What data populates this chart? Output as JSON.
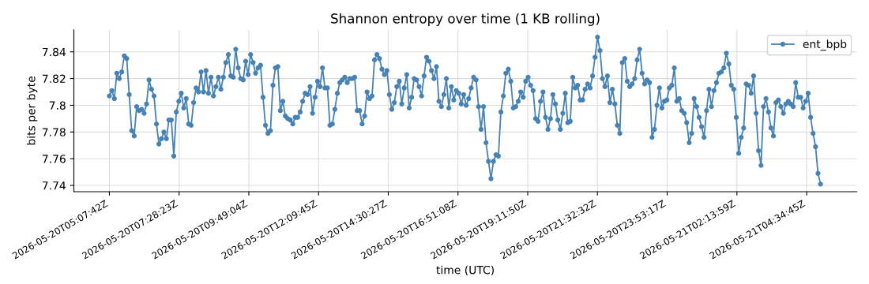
{
  "chart_data": {
    "type": "line",
    "title": "Shannon entropy over time (1 KB rolling)",
    "xlabel": "time (UTC)",
    "ylabel": "bits per byte",
    "xlim": [
      "2026-05-20T03:56",
      "2026-05-21T06:16"
    ],
    "ylim": [
      7.7353,
      7.8565
    ],
    "xticks": [
      {
        "value": "2026-05-20T05:07:42",
        "label": "2026-05-20T05:07:42Z"
      },
      {
        "value": "2026-05-20T07:28:23",
        "label": "2026-05-20T07:28:23Z"
      },
      {
        "value": "2026-05-20T09:49:04",
        "label": "2026-05-20T09:49:04Z"
      },
      {
        "value": "2026-05-20T12:09:45",
        "label": "2026-05-20T12:09:45Z"
      },
      {
        "value": "2026-05-20T14:30:27",
        "label": "2026-05-20T14:30:27Z"
      },
      {
        "value": "2026-05-20T16:51:08",
        "label": "2026-05-20T16:51:08Z"
      },
      {
        "value": "2026-05-20T19:11:50",
        "label": "2026-05-20T19:11:50Z"
      },
      {
        "value": "2026-05-20T21:32:32",
        "label": "2026-05-20T21:32:32Z"
      },
      {
        "value": "2026-05-20T23:53:17",
        "label": "2026-05-20T23:53:17Z"
      },
      {
        "value": "2026-05-21T02:13:59",
        "label": "2026-05-21T02:13:59Z"
      },
      {
        "value": "2026-05-21T04:34:45",
        "label": "2026-05-21T04:34:45Z"
      }
    ],
    "yticks": [
      7.74,
      7.76,
      7.78,
      7.8,
      7.82,
      7.84
    ],
    "grid": true,
    "legend": "top right",
    "marker": "circle",
    "line_style": "solid",
    "series": [
      {
        "name": "ent_bpb",
        "color": "#4682b4",
        "x": [
          "2026-05-20T05:07:42",
          "2026-05-20T05:12:42",
          "2026-05-20T05:17:42",
          "2026-05-20T05:22:42",
          "2026-05-20T05:27:42",
          "2026-05-20T05:32:42",
          "2026-05-20T05:37:42",
          "2026-05-20T05:42:42",
          "2026-05-20T05:47:42",
          "2026-05-20T05:52:42",
          "2026-05-20T05:57:42",
          "2026-05-20T06:02:42",
          "2026-05-20T06:07:42",
          "2026-05-20T06:12:42",
          "2026-05-20T06:17:42",
          "2026-05-20T06:22:42",
          "2026-05-20T06:27:42",
          "2026-05-20T06:32:42",
          "2026-05-20T06:37:42",
          "2026-05-20T06:42:42",
          "2026-05-20T06:47:42",
          "2026-05-20T06:52:42",
          "2026-05-20T06:57:42",
          "2026-05-20T07:02:42",
          "2026-05-20T07:07:42",
          "2026-05-20T07:12:42",
          "2026-05-20T07:17:42",
          "2026-05-20T07:22:42",
          "2026-05-20T07:27:42",
          "2026-05-20T07:32:42",
          "2026-05-20T07:37:42",
          "2026-05-20T07:42:42",
          "2026-05-20T07:47:42",
          "2026-05-20T07:52:42",
          "2026-05-20T07:57:42",
          "2026-05-20T08:02:42",
          "2026-05-20T08:07:42",
          "2026-05-20T08:12:42",
          "2026-05-20T08:17:42",
          "2026-05-20T08:22:42",
          "2026-05-20T08:27:42",
          "2026-05-20T08:32:42",
          "2026-05-20T08:37:42",
          "2026-05-20T08:42:42",
          "2026-05-20T08:47:42",
          "2026-05-20T08:52:42",
          "2026-05-20T08:57:42",
          "2026-05-20T09:02:42",
          "2026-05-20T09:07:42",
          "2026-05-20T09:12:42",
          "2026-05-20T09:17:42",
          "2026-05-20T09:22:42",
          "2026-05-20T09:27:42",
          "2026-05-20T09:32:42",
          "2026-05-20T09:37:42",
          "2026-05-20T09:42:42",
          "2026-05-20T09:47:42",
          "2026-05-20T09:52:42",
          "2026-05-20T09:57:42",
          "2026-05-20T10:02:42",
          "2026-05-20T10:07:42",
          "2026-05-20T10:12:42",
          "2026-05-20T10:17:42",
          "2026-05-20T10:22:42",
          "2026-05-20T10:27:42",
          "2026-05-20T10:32:42",
          "2026-05-20T10:37:42",
          "2026-05-20T10:42:42",
          "2026-05-20T10:47:42",
          "2026-05-20T10:52:42",
          "2026-05-20T10:57:42",
          "2026-05-20T11:02:42",
          "2026-05-20T11:07:42",
          "2026-05-20T11:12:42",
          "2026-05-20T11:17:42",
          "2026-05-20T11:22:42",
          "2026-05-20T11:27:42",
          "2026-05-20T11:32:42",
          "2026-05-20T11:37:42",
          "2026-05-20T11:42:42",
          "2026-05-20T11:47:42",
          "2026-05-20T11:52:42",
          "2026-05-20T11:57:42",
          "2026-05-20T12:02:42",
          "2026-05-20T12:07:42",
          "2026-05-20T12:12:42",
          "2026-05-20T12:17:42",
          "2026-05-20T12:22:42",
          "2026-05-20T12:27:42",
          "2026-05-20T12:32:42",
          "2026-05-20T12:37:42",
          "2026-05-20T12:42:42",
          "2026-05-20T12:47:42",
          "2026-05-20T12:52:42",
          "2026-05-20T12:57:42",
          "2026-05-20T13:02:42",
          "2026-05-20T13:07:42",
          "2026-05-20T13:12:42",
          "2026-05-20T13:17:42",
          "2026-05-20T13:22:42",
          "2026-05-20T13:27:42",
          "2026-05-20T13:32:42",
          "2026-05-20T13:37:42",
          "2026-05-20T13:42:42",
          "2026-05-20T13:47:42",
          "2026-05-20T13:52:42",
          "2026-05-20T13:57:42",
          "2026-05-20T14:02:42",
          "2026-05-20T14:07:42",
          "2026-05-20T14:12:42",
          "2026-05-20T14:17:42",
          "2026-05-20T14:22:42",
          "2026-05-20T14:27:42",
          "2026-05-20T14:32:42",
          "2026-05-20T14:37:42",
          "2026-05-20T14:42:42",
          "2026-05-20T14:47:42",
          "2026-05-20T14:52:42",
          "2026-05-20T14:57:42",
          "2026-05-20T15:02:42",
          "2026-05-20T15:07:42",
          "2026-05-20T15:12:42",
          "2026-05-20T15:17:42",
          "2026-05-20T15:22:42",
          "2026-05-20T15:27:42",
          "2026-05-20T15:32:42",
          "2026-05-20T15:37:42",
          "2026-05-20T15:42:42",
          "2026-05-20T15:47:42",
          "2026-05-20T15:52:42",
          "2026-05-20T15:57:42",
          "2026-05-20T16:02:42",
          "2026-05-20T16:07:42",
          "2026-05-20T16:12:42",
          "2026-05-20T16:17:42",
          "2026-05-20T16:22:42",
          "2026-05-20T16:27:42",
          "2026-05-20T16:32:42",
          "2026-05-20T16:37:42",
          "2026-05-20T16:42:42",
          "2026-05-20T16:47:42",
          "2026-05-20T16:52:42",
          "2026-05-20T16:57:42",
          "2026-05-20T17:02:42",
          "2026-05-20T17:07:42",
          "2026-05-20T17:12:42",
          "2026-05-20T17:17:42",
          "2026-05-20T17:22:42",
          "2026-05-20T17:27:42",
          "2026-05-20T17:32:42",
          "2026-05-20T17:37:42",
          "2026-05-20T17:42:42",
          "2026-05-20T17:47:42",
          "2026-05-20T17:52:42",
          "2026-05-20T17:57:42",
          "2026-05-20T18:02:42",
          "2026-05-20T18:07:42",
          "2026-05-20T18:12:42",
          "2026-05-20T18:17:42",
          "2026-05-20T18:22:42",
          "2026-05-20T18:27:42",
          "2026-05-20T18:32:42",
          "2026-05-20T18:37:42",
          "2026-05-20T18:42:42",
          "2026-05-20T18:47:42",
          "2026-05-20T18:52:42",
          "2026-05-20T18:57:42",
          "2026-05-20T19:02:42",
          "2026-05-20T19:07:42",
          "2026-05-20T19:12:42",
          "2026-05-20T19:17:42",
          "2026-05-20T19:22:42",
          "2026-05-20T19:27:42",
          "2026-05-20T19:32:42",
          "2026-05-20T19:37:42",
          "2026-05-20T19:42:42",
          "2026-05-20T19:47:42",
          "2026-05-20T19:52:42",
          "2026-05-20T19:57:42",
          "2026-05-20T20:02:42",
          "2026-05-20T20:07:42",
          "2026-05-20T20:12:42",
          "2026-05-20T20:17:42",
          "2026-05-20T20:22:42",
          "2026-05-20T20:27:42",
          "2026-05-20T20:32:42",
          "2026-05-20T20:37:42",
          "2026-05-20T20:42:42",
          "2026-05-20T20:47:42",
          "2026-05-20T20:52:42",
          "2026-05-20T20:57:42",
          "2026-05-20T21:02:42",
          "2026-05-20T21:07:42",
          "2026-05-20T21:12:42",
          "2026-05-20T21:17:42",
          "2026-05-20T21:22:42",
          "2026-05-20T21:27:42",
          "2026-05-20T21:32:42",
          "2026-05-20T21:37:42",
          "2026-05-20T21:42:42",
          "2026-05-20T21:47:42",
          "2026-05-20T21:52:42",
          "2026-05-20T21:57:42",
          "2026-05-20T22:02:42",
          "2026-05-20T22:07:42",
          "2026-05-20T22:12:42",
          "2026-05-20T22:17:42",
          "2026-05-20T22:22:42",
          "2026-05-20T22:27:42",
          "2026-05-20T22:32:42",
          "2026-05-20T22:37:42",
          "2026-05-20T22:42:42",
          "2026-05-20T22:47:42",
          "2026-05-20T22:52:42",
          "2026-05-20T22:57:42",
          "2026-05-20T23:02:42",
          "2026-05-20T23:07:42",
          "2026-05-20T23:12:42",
          "2026-05-20T23:17:42",
          "2026-05-20T23:22:42",
          "2026-05-20T23:27:42",
          "2026-05-20T23:32:42",
          "2026-05-20T23:37:42",
          "2026-05-20T23:42:42",
          "2026-05-20T23:47:42",
          "2026-05-20T23:52:42",
          "2026-05-20T23:57:42",
          "2026-05-21T00:02:42",
          "2026-05-21T00:07:42",
          "2026-05-21T00:12:42",
          "2026-05-21T00:17:42",
          "2026-05-21T00:22:42",
          "2026-05-21T00:27:42",
          "2026-05-21T00:32:42",
          "2026-05-21T00:37:42",
          "2026-05-21T00:42:42",
          "2026-05-21T00:47:42",
          "2026-05-21T00:52:42",
          "2026-05-21T00:57:42",
          "2026-05-21T01:02:42",
          "2026-05-21T01:07:42",
          "2026-05-21T01:12:42",
          "2026-05-21T01:17:42",
          "2026-05-21T01:22:42",
          "2026-05-21T01:27:42",
          "2026-05-21T01:32:42",
          "2026-05-21T01:37:42",
          "2026-05-21T01:42:42",
          "2026-05-21T01:47:42",
          "2026-05-21T01:52:42",
          "2026-05-21T01:57:42",
          "2026-05-21T02:02:42",
          "2026-05-21T02:07:42",
          "2026-05-21T02:12:42",
          "2026-05-21T02:17:42",
          "2026-05-21T02:22:42",
          "2026-05-21T02:27:42",
          "2026-05-21T02:32:42",
          "2026-05-21T02:37:42",
          "2026-05-21T02:42:42",
          "2026-05-21T02:47:42",
          "2026-05-21T02:52:42",
          "2026-05-21T02:57:42",
          "2026-05-21T03:02:42",
          "2026-05-21T03:07:42",
          "2026-05-21T03:12:42",
          "2026-05-21T03:17:42",
          "2026-05-21T03:22:42",
          "2026-05-21T03:27:42",
          "2026-05-21T03:32:42",
          "2026-05-21T03:37:42",
          "2026-05-21T03:42:42",
          "2026-05-21T03:47:42",
          "2026-05-21T03:52:42",
          "2026-05-21T03:57:42",
          "2026-05-21T04:02:42",
          "2026-05-21T04:07:42",
          "2026-05-21T04:12:42",
          "2026-05-21T04:17:42",
          "2026-05-21T04:22:42",
          "2026-05-21T04:27:42",
          "2026-05-21T04:32:42",
          "2026-05-21T04:37:42",
          "2026-05-21T04:42:42",
          "2026-05-21T04:47:42",
          "2026-05-21T04:52:42",
          "2026-05-21T04:57:42",
          "2026-05-21T05:02:42"
        ],
        "values": [
          7.807,
          7.811,
          7.805,
          7.824,
          7.82,
          7.825,
          7.837,
          7.835,
          7.808,
          7.781,
          7.777,
          7.799,
          7.796,
          7.797,
          7.794,
          7.801,
          7.819,
          7.812,
          7.807,
          7.786,
          7.771,
          7.775,
          7.78,
          7.775,
          7.789,
          7.789,
          7.762,
          7.795,
          7.803,
          7.809,
          7.798,
          7.805,
          7.786,
          7.785,
          7.802,
          7.813,
          7.81,
          7.825,
          7.81,
          7.826,
          7.809,
          7.821,
          7.807,
          7.814,
          7.821,
          7.812,
          7.821,
          7.832,
          7.838,
          7.822,
          7.821,
          7.842,
          7.828,
          7.82,
          7.819,
          7.833,
          7.823,
          7.838,
          7.832,
          7.824,
          7.828,
          7.83,
          7.806,
          7.785,
          7.779,
          7.781,
          7.815,
          7.828,
          7.829,
          7.796,
          7.803,
          7.792,
          7.79,
          7.789,
          7.786,
          7.791,
          7.791,
          7.795,
          7.803,
          7.809,
          7.808,
          7.814,
          7.794,
          7.806,
          7.818,
          7.814,
          7.828,
          7.813,
          7.813,
          7.785,
          7.786,
          7.797,
          7.809,
          7.817,
          7.819,
          7.821,
          7.817,
          7.82,
          7.82,
          7.821,
          7.796,
          7.796,
          7.786,
          7.792,
          7.81,
          7.805,
          7.807,
          7.834,
          7.838,
          7.835,
          7.827,
          7.823,
          7.826,
          7.808,
          7.797,
          7.802,
          7.814,
          7.818,
          7.801,
          7.813,
          7.823,
          7.798,
          7.806,
          7.82,
          7.819,
          7.814,
          7.807,
          7.822,
          7.836,
          7.833,
          7.826,
          7.82,
          7.829,
          7.803,
          7.799,
          7.808,
          7.82,
          7.798,
          7.814,
          7.804,
          7.811,
          7.809,
          7.801,
          7.808,
          7.8,
          7.805,
          7.813,
          7.821,
          7.819,
          7.799,
          7.782,
          7.799,
          7.772,
          7.758,
          7.745,
          7.758,
          7.763,
          7.762,
          7.795,
          7.807,
          7.824,
          7.827,
          7.818,
          7.798,
          7.799,
          7.803,
          7.81,
          7.806,
          7.818,
          7.821,
          7.815,
          7.811,
          7.79,
          7.788,
          7.803,
          7.81,
          7.791,
          7.782,
          7.79,
          7.808,
          7.801,
          7.789,
          7.782,
          7.794,
          7.809,
          7.787,
          7.788,
          7.821,
          7.813,
          7.815,
          7.804,
          7.804,
          7.812,
          7.816,
          7.813,
          7.822,
          7.836,
          7.851,
          7.841,
          7.82,
          7.814,
          7.822,
          7.802,
          7.812,
          7.801,
          7.785,
          7.779,
          7.832,
          7.835,
          7.818,
          7.814,
          7.816,
          7.82,
          7.834,
          7.842,
          7.824,
          7.816,
          7.819,
          7.817,
          7.776,
          7.782,
          7.8,
          7.813,
          7.798,
          7.803,
          7.804,
          7.813,
          7.815,
          7.828,
          7.803,
          7.805,
          7.796,
          7.794,
          7.787,
          7.772,
          7.779,
          7.805,
          7.799,
          7.791,
          7.784,
          7.776,
          7.796,
          7.812,
          7.799,
          7.811,
          7.817,
          7.824,
          7.825,
          7.828,
          7.839,
          7.831,
          7.815,
          7.812,
          7.791,
          7.764,
          7.776,
          7.783,
          7.816,
          7.815,
          7.809,
          7.822,
          7.794,
          7.766,
          7.755,
          7.799,
          7.805,
          7.795,
          7.783,
          7.777,
          7.802,
          7.804,
          7.799,
          7.794,
          7.801,
          7.803,
          7.801,
          7.799,
          7.817,
          7.806,
          7.806,
          7.798,
          7.803,
          7.809,
          7.791,
          7.779,
          7.769,
          7.749,
          7.741
        ]
      }
    ]
  }
}
